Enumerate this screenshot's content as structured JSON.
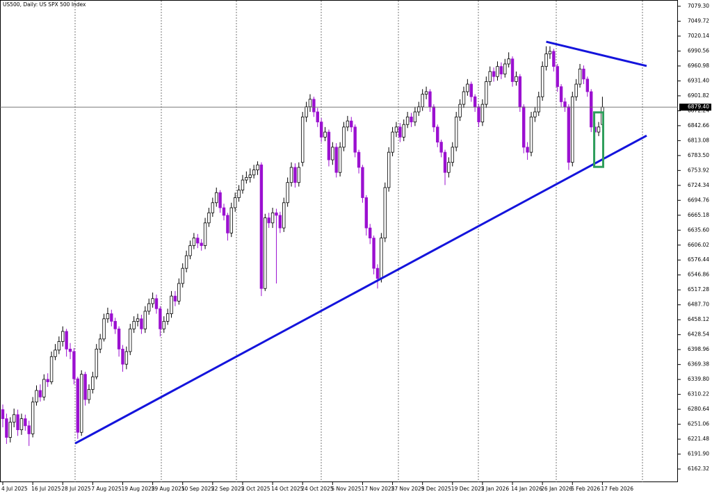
{
  "chart_data": {
    "type": "candlestick",
    "title": "US500, Daily: US SPX 500 Index",
    "categories": [
      "4 Jul 2025",
      null,
      null,
      null,
      null,
      null,
      null,
      null,
      "16 Jul 2025",
      null,
      null,
      null,
      null,
      null,
      null,
      null,
      "28 Jul 2025",
      null,
      null,
      null,
      null,
      null,
      null,
      null,
      "7 Aug 2025",
      null,
      null,
      null,
      null,
      null,
      null,
      null,
      "19 Aug 2025",
      null,
      null,
      null,
      null,
      null,
      null,
      null,
      "29 Aug 2025",
      null,
      null,
      null,
      null,
      null,
      null,
      null,
      "10 Sep 2025",
      null,
      null,
      null,
      null,
      null,
      null,
      null,
      "22 Sep 2025",
      null,
      null,
      null,
      null,
      null,
      null,
      null,
      "2 Oct 2025",
      null,
      null,
      null,
      null,
      null,
      null,
      null,
      "14 Oct 2025",
      null,
      null,
      null,
      null,
      null,
      null,
      null,
      "24 Oct 2025",
      null,
      null,
      null,
      null,
      null,
      null,
      null,
      "5 Nov 2025",
      null,
      null,
      null,
      null,
      null,
      null,
      null,
      "17 Nov 2025",
      null,
      null,
      null,
      null,
      null,
      null,
      null,
      "27 Nov 2025",
      null,
      null,
      null,
      null,
      null,
      null,
      null,
      "9 Dec 2025",
      null,
      null,
      null,
      null,
      null,
      null,
      null,
      "19 Dec 2025",
      null,
      null,
      null,
      null,
      null,
      null,
      null,
      "2 Jan 2026",
      null,
      null,
      null,
      null,
      null,
      null,
      null,
      "14 Jan 2026",
      null,
      null,
      null,
      null,
      null,
      null,
      null,
      "26 Jan 2026",
      null,
      null,
      null,
      null,
      null,
      null,
      null,
      "5 Feb 2026",
      null,
      null,
      null,
      null,
      null,
      null,
      null,
      "17 Feb 2026"
    ],
    "open": [
      6280,
      6262,
      6225,
      6255,
      6270,
      6240,
      6262,
      6248,
      6232,
      6295,
      6318,
      6305,
      6340,
      6335,
      6385,
      6398,
      6415,
      6435,
      6400,
      6395,
      6341,
      6235,
      6350,
      6300,
      6320,
      6345,
      6400,
      6420,
      6460,
      6470,
      6455,
      6440,
      6400,
      6370,
      6395,
      6440,
      6455,
      6460,
      6440,
      6475,
      6490,
      6500,
      6480,
      6440,
      6455,
      6470,
      6505,
      6495,
      6530,
      6560,
      6585,
      6605,
      6620,
      6610,
      6605,
      6650,
      6670,
      6690,
      6710,
      6680,
      6665,
      6630,
      6680,
      6700,
      6715,
      6735,
      6740,
      6745,
      6755,
      6765,
      6520,
      6660,
      6650,
      6670,
      6665,
      6640,
      6690,
      6730,
      6760,
      6730,
      6770,
      6860,
      6880,
      6895,
      6870,
      6850,
      6820,
      6830,
      6775,
      6800,
      6750,
      6800,
      6840,
      6852,
      6840,
      6790,
      6760,
      6700,
      6640,
      6620,
      6560,
      6540,
      6620,
      6720,
      6790,
      6830,
      6840,
      6820,
      6845,
      6860,
      6850,
      6870,
      6880,
      6905,
      6910,
      6880,
      6840,
      6810,
      6790,
      6750,
      6770,
      6800,
      6860,
      6885,
      6910,
      6925,
      6900,
      6880,
      6850,
      6885,
      6930,
      6950,
      6940,
      6960,
      6945,
      6965,
      6975,
      6930,
      6940,
      6880,
      6800,
      6790,
      6860,
      6870,
      6900,
      6960,
      6985,
      6990,
      6960,
      6920,
      6890,
      6880,
      6770,
      6900,
      6925,
      6955,
      6935,
      6910,
      6840,
      6830,
      6845
    ],
    "high": [
      6290,
      6272,
      6265,
      6282,
      6280,
      6272,
      6270,
      6258,
      6305,
      6328,
      6330,
      6350,
      6352,
      6395,
      6410,
      6425,
      6445,
      6440,
      6412,
      6402,
      6345,
      6358,
      6355,
      6330,
      6355,
      6410,
      6430,
      6470,
      6482,
      6478,
      6462,
      6445,
      6408,
      6405,
      6450,
      6465,
      6470,
      6468,
      6485,
      6500,
      6512,
      6508,
      6485,
      6465,
      6480,
      6515,
      6515,
      6540,
      6570,
      6595,
      6615,
      6630,
      6628,
      6618,
      6660,
      6680,
      6700,
      6720,
      6715,
      6688,
      6670,
      6690,
      6710,
      6725,
      6745,
      6752,
      6758,
      6765,
      6772,
      6770,
      6668,
      6670,
      6680,
      6678,
      6672,
      6700,
      6740,
      6770,
      6768,
      6770,
      6870,
      6890,
      6905,
      6900,
      6878,
      6858,
      6840,
      6835,
      6810,
      6808,
      6810,
      6850,
      6862,
      6860,
      6845,
      6795,
      6765,
      6705,
      6648,
      6625,
      6568,
      6630,
      6730,
      6800,
      6840,
      6850,
      6848,
      6855,
      6870,
      6868,
      6880,
      6890,
      6915,
      6920,
      6915,
      6885,
      6845,
      6815,
      6795,
      6780,
      6810,
      6870,
      6895,
      6920,
      6935,
      6930,
      6905,
      6885,
      6895,
      6940,
      6960,
      6958,
      6970,
      6968,
      6975,
      6988,
      6980,
      6950,
      6945,
      6885,
      6810,
      6870,
      6880,
      6910,
      6970,
      7000,
      7000,
      6995,
      6965,
      6925,
      6898,
      6885,
      6910,
      6935,
      6965,
      6962,
      6940,
      6915,
      6848,
      6850,
      6900
    ],
    "low": [
      6245,
      6212,
      6215,
      6245,
      6228,
      6230,
      6238,
      6208,
      6225,
      6288,
      6296,
      6298,
      6325,
      6330,
      6378,
      6390,
      6405,
      6385,
      6380,
      6330,
      6222,
      6228,
      6288,
      6292,
      6312,
      6340,
      6392,
      6415,
      6452,
      6445,
      6430,
      6385,
      6355,
      6360,
      6388,
      6432,
      6445,
      6430,
      6432,
      6468,
      6482,
      6470,
      6425,
      6432,
      6448,
      6462,
      6485,
      6488,
      6522,
      6552,
      6578,
      6598,
      6600,
      6595,
      6598,
      6642,
      6662,
      6682,
      6670,
      6655,
      6615,
      6622,
      6672,
      6692,
      6708,
      6728,
      6730,
      6738,
      6745,
      6505,
      6515,
      6640,
      6640,
      6530,
      6630,
      6632,
      6682,
      6722,
      6720,
      6722,
      6762,
      6850,
      6870,
      6860,
      6840,
      6810,
      6812,
      6762,
      6765,
      6740,
      6742,
      6792,
      6832,
      6830,
      6780,
      6748,
      6690,
      6625,
      6608,
      6548,
      6520,
      6532,
      6612,
      6712,
      6782,
      6820,
      6810,
      6812,
      6838,
      6840,
      6842,
      6862,
      6872,
      6895,
      6870,
      6830,
      6800,
      6780,
      6725,
      6740,
      6762,
      6792,
      6852,
      6878,
      6902,
      6890,
      6870,
      6840,
      6842,
      6878,
      6922,
      6930,
      6932,
      6935,
      6938,
      6958,
      6920,
      6922,
      6870,
      6788,
      6775,
      6782,
      6850,
      6862,
      6892,
      6952,
      6975,
      6950,
      6910,
      6880,
      6870,
      6755,
      6762,
      6892,
      6918,
      6925,
      6900,
      6830,
      6795,
      6822,
      6838
    ],
    "close": [
      6262,
      6225,
      6255,
      6270,
      6240,
      6262,
      6248,
      6232,
      6295,
      6318,
      6305,
      6340,
      6335,
      6385,
      6398,
      6415,
      6435,
      6400,
      6395,
      6341,
      6235,
      6350,
      6300,
      6320,
      6345,
      6400,
      6420,
      6460,
      6470,
      6455,
      6440,
      6400,
      6370,
      6395,
      6440,
      6455,
      6460,
      6440,
      6475,
      6490,
      6500,
      6480,
      6440,
      6455,
      6470,
      6505,
      6495,
      6530,
      6560,
      6585,
      6605,
      6620,
      6610,
      6605,
      6650,
      6670,
      6690,
      6710,
      6680,
      6665,
      6630,
      6680,
      6700,
      6715,
      6735,
      6740,
      6745,
      6755,
      6765,
      6520,
      6660,
      6650,
      6670,
      6665,
      6640,
      6690,
      6730,
      6760,
      6730,
      6760,
      6860,
      6880,
      6895,
      6870,
      6850,
      6820,
      6830,
      6775,
      6800,
      6750,
      6800,
      6840,
      6852,
      6840,
      6790,
      6760,
      6700,
      6640,
      6620,
      6560,
      6540,
      6620,
      6720,
      6790,
      6830,
      6840,
      6820,
      6845,
      6860,
      6850,
      6870,
      6880,
      6905,
      6910,
      6880,
      6840,
      6810,
      6790,
      6750,
      6770,
      6800,
      6860,
      6885,
      6910,
      6925,
      6900,
      6880,
      6850,
      6885,
      6930,
      6950,
      6940,
      6960,
      6945,
      6965,
      6975,
      6930,
      6940,
      6880,
      6800,
      6790,
      6860,
      6870,
      6900,
      6960,
      6985,
      6990,
      6960,
      6920,
      6890,
      6880,
      6770,
      6900,
      6925,
      6955,
      6935,
      6910,
      6840,
      6830,
      6840,
      6879.4
    ],
    "up_color": "#ffffff",
    "down_color": "#9b10d0",
    "outline_color": "#000000",
    "ylim": [
      6136.2,
      7091.7
    ],
    "yticks": [
      {
        "value": 7079.3,
        "label": "7079.30"
      },
      7049.72,
      7020.14,
      6990.56,
      6960.98,
      {
        "value": 6931.4,
        "label": "6931.40"
      },
      6901.82,
      6872.24,
      6842.66,
      6813.08,
      {
        "value": 6783.5,
        "label": "6783.50"
      },
      6753.92,
      6724.34,
      6694.76,
      6665.18,
      {
        "value": 6635.6,
        "label": "6635.60"
      },
      6606.02,
      6576.44,
      6546.86,
      6517.28,
      {
        "value": 6487.7,
        "label": "6487.70"
      },
      6458.12,
      6428.54,
      6398.96,
      6369.38,
      {
        "value": 6339.8,
        "label": "6339.80"
      },
      6310.22,
      6280.64,
      6251.06,
      6221.48,
      {
        "value": 6191.9,
        "label": "6191.90"
      },
      6162.32
    ],
    "last_price": {
      "value": 6879.4,
      "label": "6879.40"
    },
    "trendlines": [
      {
        "x": [
          19.3,
          171.8
        ],
        "y": [
          6213,
          6823
        ],
        "color": "#1414dc"
      },
      {
        "x": [
          145,
          171.8
        ],
        "y": [
          7009,
          6961
        ],
        "color": "#1414dc"
      }
    ],
    "highlight": {
      "x": [
        157.8,
        160.2
      ],
      "y": [
        6869,
        6761
      ],
      "color": "#2e9e5b"
    }
  }
}
